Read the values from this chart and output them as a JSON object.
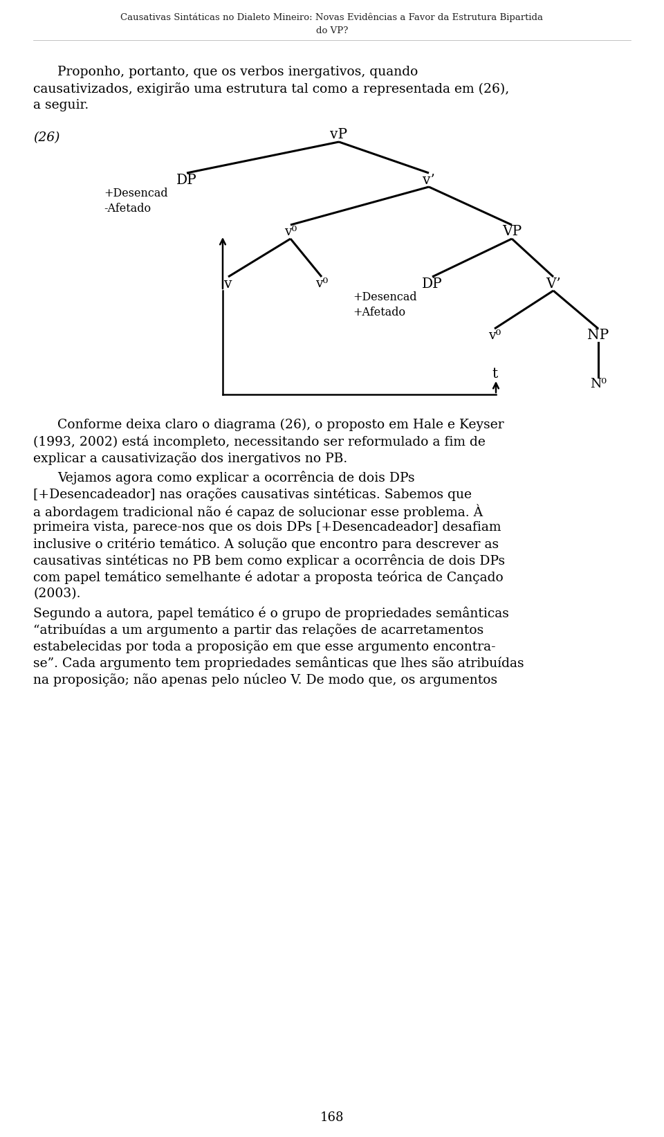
{
  "bg_color": "#ffffff",
  "text_color": "#000000",
  "header1": "Causativas Sintáticas no Dialeto Mineiro: Novas Evidências a Favor da Estrutura Bipartida",
  "header2": "do VP?",
  "para1": "Proponho, portanto, que os verbos inergativos, quando causativizados, exigirão uma estrutura tal como a representada em (26), a seguir.",
  "label26": "(26)",
  "para2": "Conforme deixa claro o diagrama (26), o proposto em Hale e Keyser (1993, 2002) está incompleto, necessitando ser reformulado a fim de explicar a causativização dos inergativos no PB.",
  "para3_1": "Vejamos agora como explicar a ocorrência de dois DPs [+Desencadeador] nas orações causativas sintéticas. Sabemos que a abordagem tradicional não é capaz de solucionar esse problema. À primeira vista, parece-nos que os dois DPs [+Desencadeador] desafiam inclusive o critério temático. A solução que encontro para descrever as causativas sintéticas no PB bem como explicar a ocorrência de dois DPs com papel temático semelhante é adotar a proposta teórica de Cançado (2003).",
  "para4": "Segundo a autora, papel temático é o grupo de propriedades semânticas “atribuídas a um argumento a partir das relações de acarretamentos estabelecidas por toda a proposição em que esse argumento encontra-se”. Cada argumento tem propriedades semânticas que lhes são atribuídas na proposição; não apenas pelo núcleo V. De modo que, os argumentos",
  "page_number": "168"
}
